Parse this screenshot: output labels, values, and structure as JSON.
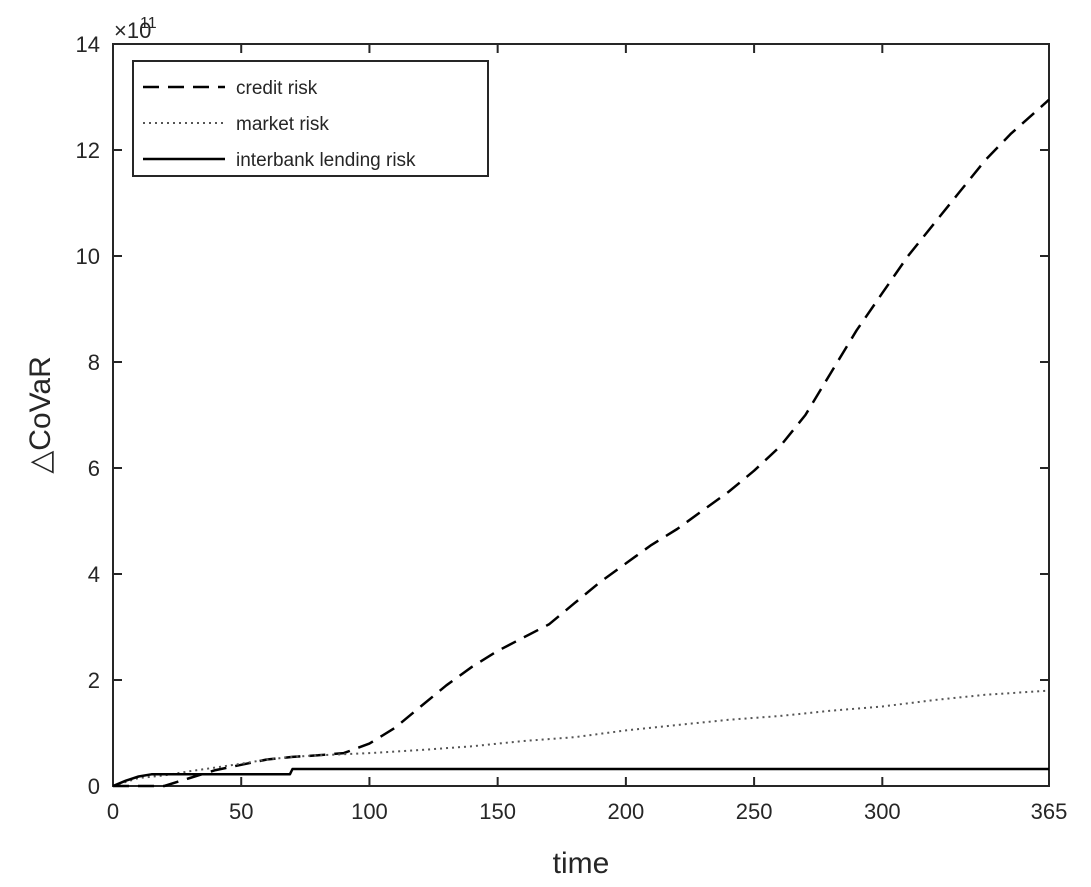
{
  "chart_data": {
    "type": "line",
    "xlabel": "time",
    "ylabel": "△CoVaR",
    "y_exponent_label": "×10",
    "y_exponent_power": "11",
    "xlim": [
      0,
      365
    ],
    "ylim": [
      0,
      14
    ],
    "x_ticks": [
      0,
      50,
      100,
      150,
      200,
      250,
      300,
      365
    ],
    "x_tick_labels": [
      "0",
      "50",
      "100",
      "150",
      "200",
      "250",
      "300",
      "365"
    ],
    "y_ticks": [
      0,
      2,
      4,
      6,
      8,
      10,
      12,
      14
    ],
    "y_tick_labels": [
      "0",
      "2",
      "4",
      "6",
      "8",
      "10",
      "12",
      "14"
    ],
    "grid": false,
    "legend_position": "top-left",
    "series": [
      {
        "name": "credit risk",
        "style": "dashed",
        "color": "#000000",
        "x": [
          0,
          10,
          20,
          30,
          40,
          50,
          60,
          70,
          80,
          90,
          100,
          110,
          120,
          130,
          140,
          150,
          160,
          170,
          180,
          190,
          200,
          210,
          220,
          230,
          240,
          250,
          260,
          270,
          280,
          290,
          300,
          310,
          320,
          330,
          340,
          350,
          365
        ],
        "y": [
          0,
          0,
          0,
          0.15,
          0.3,
          0.4,
          0.5,
          0.55,
          0.58,
          0.62,
          0.8,
          1.1,
          1.5,
          1.9,
          2.25,
          2.55,
          2.8,
          3.05,
          3.45,
          3.85,
          4.2,
          4.55,
          4.85,
          5.2,
          5.55,
          5.95,
          6.4,
          7.0,
          7.8,
          8.6,
          9.3,
          10.0,
          10.6,
          11.2,
          11.8,
          12.3,
          12.95
        ]
      },
      {
        "name": "market risk",
        "style": "dotted",
        "color": "#555555",
        "x": [
          0,
          10,
          20,
          30,
          40,
          50,
          60,
          70,
          80,
          90,
          100,
          120,
          140,
          160,
          180,
          200,
          220,
          240,
          260,
          280,
          300,
          320,
          340,
          365
        ],
        "y": [
          0,
          0.15,
          0.2,
          0.28,
          0.35,
          0.42,
          0.5,
          0.55,
          0.58,
          0.6,
          0.62,
          0.68,
          0.75,
          0.85,
          0.92,
          1.05,
          1.15,
          1.25,
          1.32,
          1.42,
          1.5,
          1.62,
          1.72,
          1.8
        ]
      },
      {
        "name": "interbank lending risk",
        "style": "solid",
        "color": "#000000",
        "x": [
          0,
          5,
          10,
          15,
          20,
          30,
          40,
          50,
          60,
          69,
          70,
          100,
          150,
          200,
          250,
          300,
          365
        ],
        "y": [
          0,
          0.1,
          0.18,
          0.22,
          0.22,
          0.22,
          0.22,
          0.22,
          0.22,
          0.22,
          0.32,
          0.32,
          0.32,
          0.32,
          0.32,
          0.32,
          0.32
        ]
      }
    ]
  }
}
